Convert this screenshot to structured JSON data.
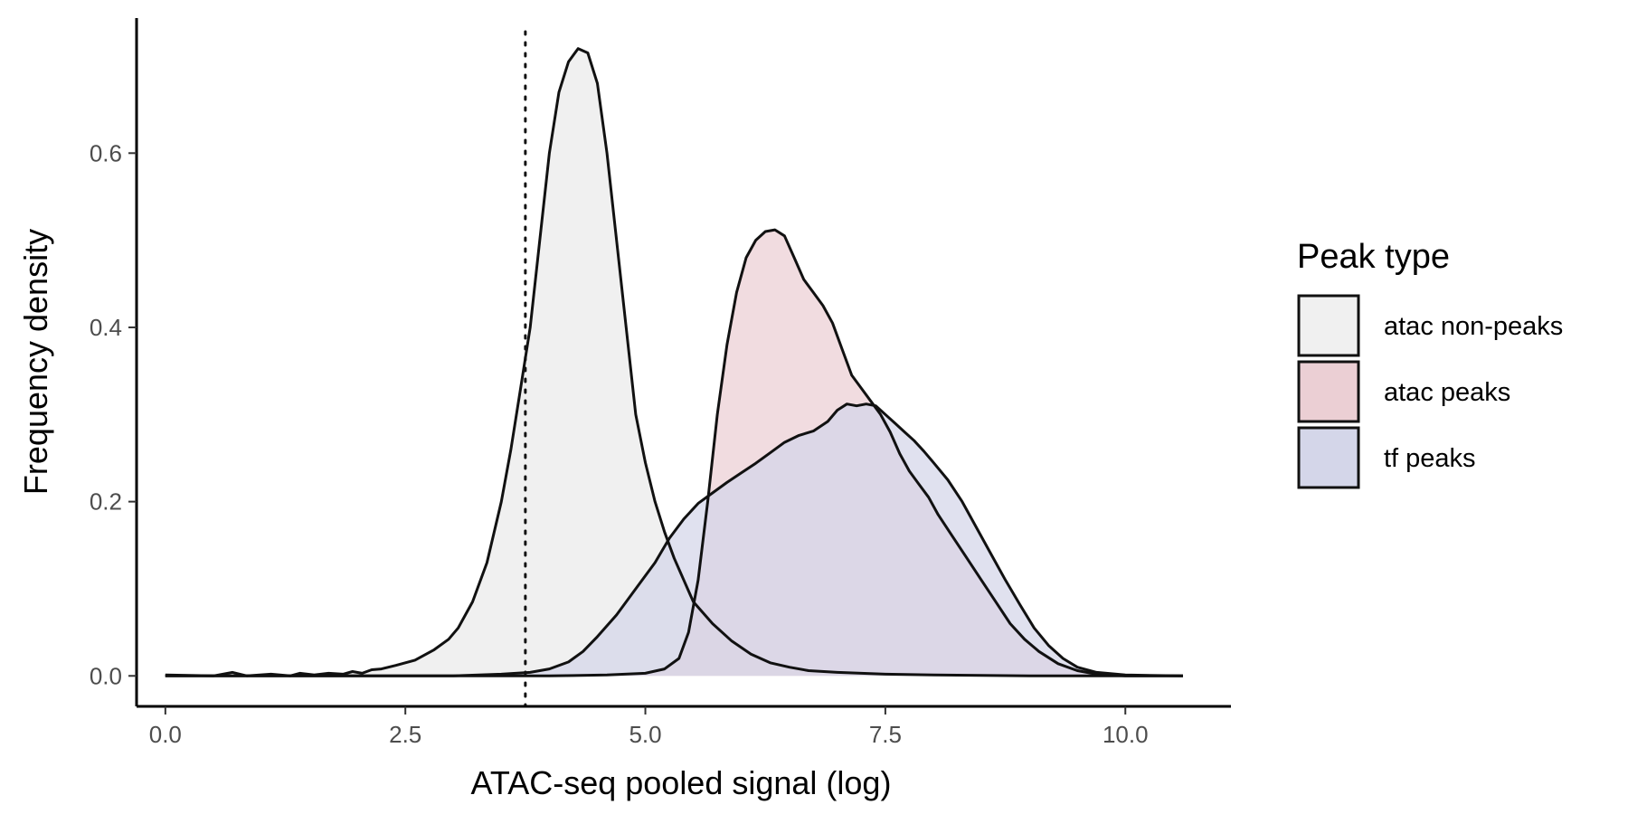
{
  "chart_data": {
    "type": "area",
    "title": "",
    "xlabel": "ATAC-seq pooled signal (log)",
    "ylabel": "Frequency density",
    "xlim": [
      -0.3,
      11.1
    ],
    "ylim": [
      -0.035,
      0.755
    ],
    "x_ticks": [
      0.0,
      2.5,
      5.0,
      7.5,
      10.0
    ],
    "x_tick_labels": [
      "0.0",
      "2.5",
      "5.0",
      "7.5",
      "10.0"
    ],
    "y_ticks": [
      0.0,
      0.2,
      0.4,
      0.6
    ],
    "y_tick_labels": [
      "0.0",
      "0.2",
      "0.4",
      "0.6"
    ],
    "grid": false,
    "legend": {
      "title": "Peak type",
      "position": "right"
    },
    "threshold_line": {
      "x": 3.75,
      "style": "dotted"
    },
    "series": [
      {
        "name": "atac non-peaks",
        "fill": "#f0f0f0",
        "points": [
          [
            0.0,
            0.001
          ],
          [
            0.5,
            0.0
          ],
          [
            0.7,
            0.004
          ],
          [
            0.85,
            0.0
          ],
          [
            1.1,
            0.002
          ],
          [
            1.3,
            0.0
          ],
          [
            1.4,
            0.003
          ],
          [
            1.55,
            0.001
          ],
          [
            1.7,
            0.003
          ],
          [
            1.85,
            0.002
          ],
          [
            1.95,
            0.005
          ],
          [
            2.05,
            0.003
          ],
          [
            2.15,
            0.007
          ],
          [
            2.25,
            0.008
          ],
          [
            2.4,
            0.012
          ],
          [
            2.6,
            0.018
          ],
          [
            2.8,
            0.03
          ],
          [
            2.95,
            0.042
          ],
          [
            3.05,
            0.055
          ],
          [
            3.2,
            0.085
          ],
          [
            3.35,
            0.13
          ],
          [
            3.5,
            0.2
          ],
          [
            3.6,
            0.26
          ],
          [
            3.7,
            0.33
          ],
          [
            3.8,
            0.4
          ],
          [
            3.9,
            0.5
          ],
          [
            4.0,
            0.6
          ],
          [
            4.1,
            0.67
          ],
          [
            4.2,
            0.705
          ],
          [
            4.3,
            0.72
          ],
          [
            4.4,
            0.715
          ],
          [
            4.5,
            0.68
          ],
          [
            4.6,
            0.6
          ],
          [
            4.7,
            0.5
          ],
          [
            4.8,
            0.4
          ],
          [
            4.9,
            0.3
          ],
          [
            5.0,
            0.245
          ],
          [
            5.1,
            0.2
          ],
          [
            5.2,
            0.165
          ],
          [
            5.3,
            0.135
          ],
          [
            5.4,
            0.11
          ],
          [
            5.5,
            0.085
          ],
          [
            5.7,
            0.06
          ],
          [
            5.9,
            0.04
          ],
          [
            6.1,
            0.025
          ],
          [
            6.3,
            0.015
          ],
          [
            6.5,
            0.01
          ],
          [
            6.7,
            0.006
          ],
          [
            7.0,
            0.004
          ],
          [
            7.5,
            0.002
          ],
          [
            8.0,
            0.001
          ],
          [
            9.0,
            0.0
          ],
          [
            10.6,
            0.0
          ]
        ]
      },
      {
        "name": "atac peaks",
        "fill": "#ebcfd4",
        "points": [
          [
            0.0,
            0.0
          ],
          [
            4.0,
            0.0
          ],
          [
            4.6,
            0.001
          ],
          [
            5.0,
            0.003
          ],
          [
            5.2,
            0.008
          ],
          [
            5.35,
            0.02
          ],
          [
            5.45,
            0.05
          ],
          [
            5.55,
            0.11
          ],
          [
            5.65,
            0.2
          ],
          [
            5.75,
            0.3
          ],
          [
            5.85,
            0.38
          ],
          [
            5.95,
            0.44
          ],
          [
            6.05,
            0.48
          ],
          [
            6.15,
            0.5
          ],
          [
            6.25,
            0.51
          ],
          [
            6.35,
            0.512
          ],
          [
            6.45,
            0.505
          ],
          [
            6.55,
            0.48
          ],
          [
            6.65,
            0.455
          ],
          [
            6.75,
            0.44
          ],
          [
            6.85,
            0.425
          ],
          [
            6.95,
            0.405
          ],
          [
            7.05,
            0.375
          ],
          [
            7.15,
            0.345
          ],
          [
            7.25,
            0.33
          ],
          [
            7.35,
            0.315
          ],
          [
            7.45,
            0.3
          ],
          [
            7.55,
            0.28
          ],
          [
            7.65,
            0.255
          ],
          [
            7.75,
            0.235
          ],
          [
            7.85,
            0.22
          ],
          [
            7.95,
            0.205
          ],
          [
            8.05,
            0.185
          ],
          [
            8.2,
            0.16
          ],
          [
            8.35,
            0.135
          ],
          [
            8.5,
            0.11
          ],
          [
            8.65,
            0.085
          ],
          [
            8.8,
            0.06
          ],
          [
            8.95,
            0.042
          ],
          [
            9.1,
            0.028
          ],
          [
            9.3,
            0.014
          ],
          [
            9.5,
            0.006
          ],
          [
            9.7,
            0.002
          ],
          [
            10.0,
            0.0
          ],
          [
            10.6,
            0.0
          ]
        ]
      },
      {
        "name": "tf peaks",
        "fill": "#d4d6e9",
        "points": [
          [
            0.0,
            0.0
          ],
          [
            3.0,
            0.0
          ],
          [
            3.5,
            0.002
          ],
          [
            3.8,
            0.004
          ],
          [
            4.0,
            0.008
          ],
          [
            4.2,
            0.016
          ],
          [
            4.35,
            0.028
          ],
          [
            4.5,
            0.045
          ],
          [
            4.7,
            0.07
          ],
          [
            4.9,
            0.1
          ],
          [
            5.1,
            0.13
          ],
          [
            5.25,
            0.158
          ],
          [
            5.4,
            0.18
          ],
          [
            5.55,
            0.198
          ],
          [
            5.7,
            0.21
          ],
          [
            5.85,
            0.222
          ],
          [
            6.0,
            0.233
          ],
          [
            6.15,
            0.244
          ],
          [
            6.3,
            0.256
          ],
          [
            6.45,
            0.268
          ],
          [
            6.6,
            0.276
          ],
          [
            6.75,
            0.281
          ],
          [
            6.9,
            0.292
          ],
          [
            7.0,
            0.305
          ],
          [
            7.1,
            0.312
          ],
          [
            7.2,
            0.31
          ],
          [
            7.3,
            0.312
          ],
          [
            7.4,
            0.31
          ],
          [
            7.5,
            0.3
          ],
          [
            7.6,
            0.29
          ],
          [
            7.7,
            0.28
          ],
          [
            7.8,
            0.27
          ],
          [
            7.9,
            0.258
          ],
          [
            8.0,
            0.245
          ],
          [
            8.15,
            0.225
          ],
          [
            8.3,
            0.2
          ],
          [
            8.45,
            0.17
          ],
          [
            8.6,
            0.14
          ],
          [
            8.75,
            0.11
          ],
          [
            8.9,
            0.082
          ],
          [
            9.05,
            0.055
          ],
          [
            9.2,
            0.035
          ],
          [
            9.35,
            0.02
          ],
          [
            9.5,
            0.01
          ],
          [
            9.7,
            0.004
          ],
          [
            10.0,
            0.001
          ],
          [
            10.6,
            0.0
          ]
        ]
      }
    ]
  }
}
